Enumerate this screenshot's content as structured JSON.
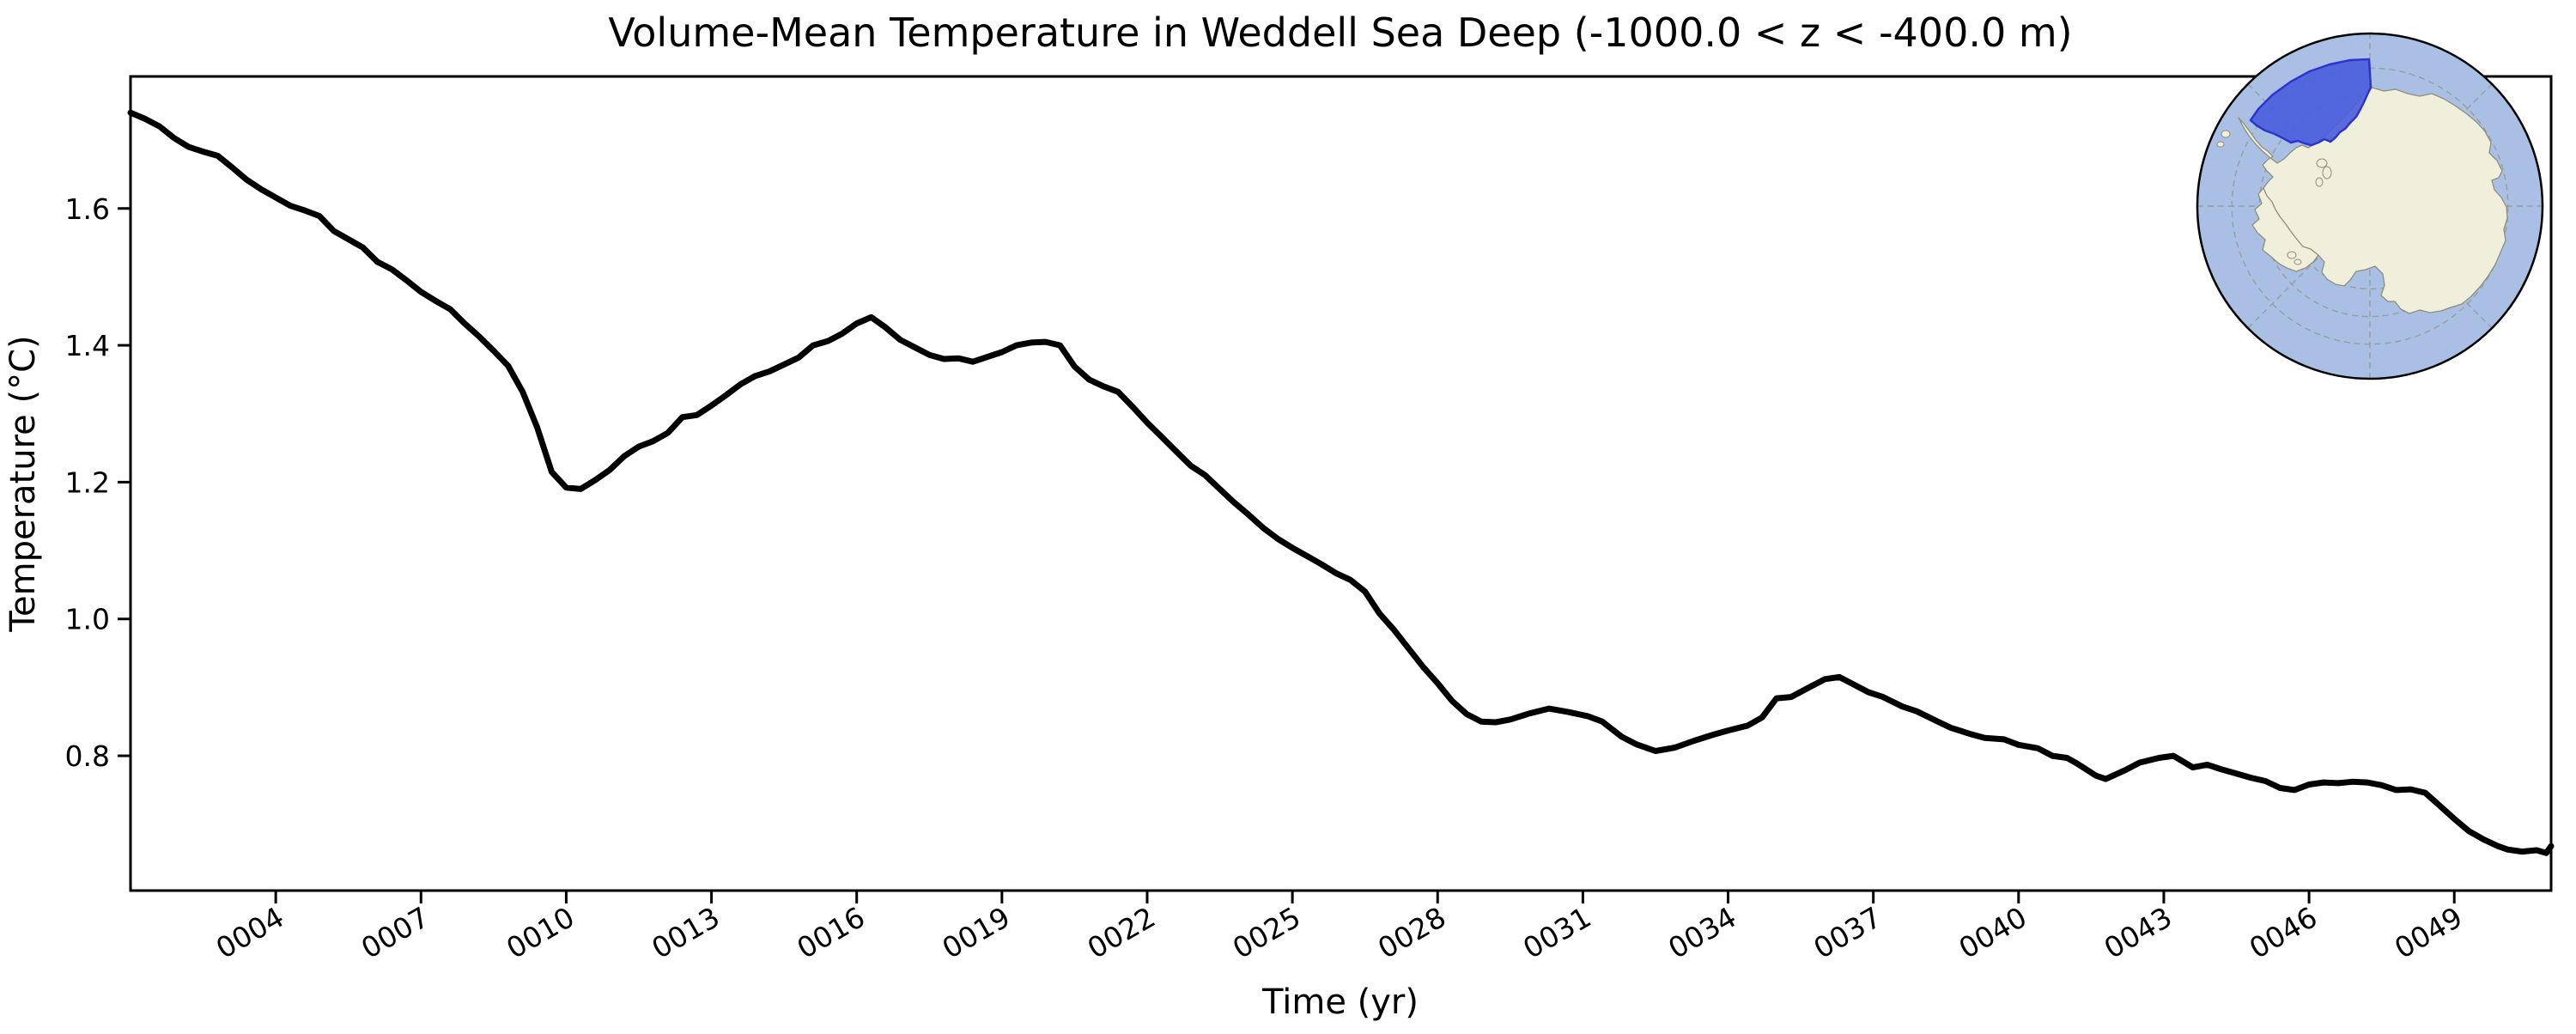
{
  "figure": {
    "title": "Volume-Mean Temperature in Weddell Sea Deep (-1000.0 < z < -400.0 m)",
    "xlabel": "Time (yr)",
    "ylabel": "Temperature (°C)",
    "background_color": "#ffffff",
    "line_color": "#000000"
  },
  "chart_data": {
    "type": "line",
    "title": "Volume-Mean Temperature in Weddell Sea Deep (-1000.0 < z < -400.0 m)",
    "xlabel": "Time (yr)",
    "ylabel": "Temperature (°C)",
    "xlim": [
      1.0,
      51.0
    ],
    "ylim": [
      0.603,
      1.793
    ],
    "grid": false,
    "legend": null,
    "x_ticks": [
      4,
      7,
      10,
      13,
      16,
      19,
      22,
      25,
      28,
      31,
      34,
      37,
      40,
      43,
      46,
      49
    ],
    "x_tick_labels": [
      "0004",
      "0007",
      "0010",
      "0013",
      "0016",
      "0019",
      "0022",
      "0025",
      "0028",
      "0031",
      "0034",
      "0037",
      "0040",
      "0043",
      "0046",
      "0049"
    ],
    "y_ticks": [
      0.8,
      1.0,
      1.2,
      1.4,
      1.6
    ],
    "y_tick_labels": [
      "0.8",
      "1.0",
      "1.2",
      "1.4",
      "1.6"
    ],
    "series": [
      {
        "name": "volume-mean-temperature",
        "color": "#000000",
        "linewidth": 7,
        "x": [
          1.0,
          1.3,
          1.6,
          1.9,
          2.2,
          2.5,
          2.8,
          3.1,
          3.4,
          3.7,
          4.0,
          4.3,
          4.6,
          4.9,
          5.2,
          5.5,
          5.8,
          6.1,
          6.4,
          6.7,
          7.0,
          7.3,
          7.6,
          7.9,
          8.2,
          8.5,
          8.8,
          9.1,
          9.4,
          9.7,
          10.0,
          10.3,
          10.6,
          10.9,
          11.2,
          11.5,
          11.8,
          12.1,
          12.4,
          12.7,
          13.0,
          13.3,
          13.6,
          13.9,
          14.2,
          14.5,
          14.8,
          15.1,
          15.4,
          15.7,
          16.0,
          16.3,
          16.6,
          16.9,
          17.2,
          17.5,
          17.8,
          18.1,
          18.4,
          18.7,
          19.0,
          19.3,
          19.6,
          19.9,
          20.2,
          20.5,
          20.8,
          21.1,
          21.4,
          21.7,
          22.0,
          22.3,
          22.6,
          22.9,
          23.2,
          23.5,
          23.8,
          24.1,
          24.4,
          24.7,
          25.0,
          25.3,
          25.6,
          25.9,
          26.2,
          26.5,
          26.8,
          27.1,
          27.4,
          27.7,
          28.0,
          28.3,
          28.6,
          28.9,
          29.2,
          29.5,
          29.9,
          30.3,
          30.7,
          31.1,
          31.4,
          31.8,
          32.1,
          32.5,
          32.9,
          33.3,
          33.7,
          34.0,
          34.4,
          34.7,
          35.0,
          35.3,
          35.7,
          36.0,
          36.3,
          36.6,
          36.9,
          37.2,
          37.6,
          37.9,
          38.3,
          38.6,
          39.0,
          39.3,
          39.7,
          40.0,
          40.4,
          40.7,
          41.0,
          41.2,
          41.6,
          41.8,
          42.2,
          42.5,
          42.9,
          43.2,
          43.6,
          43.9,
          44.2,
          44.5,
          44.8,
          45.1,
          45.4,
          45.7,
          46.0,
          46.3,
          46.6,
          46.9,
          47.2,
          47.5,
          47.8,
          48.1,
          48.4,
          48.7,
          49.0,
          49.3,
          49.6,
          49.9,
          50.1,
          50.4,
          50.7,
          50.9,
          51.0
        ],
        "y": [
          1.74,
          1.731,
          1.72,
          1.703,
          1.69,
          1.683,
          1.677,
          1.66,
          1.642,
          1.628,
          1.616,
          1.604,
          1.597,
          1.589,
          1.567,
          1.555,
          1.543,
          1.522,
          1.511,
          1.495,
          1.478,
          1.465,
          1.453,
          1.432,
          1.413,
          1.392,
          1.37,
          1.332,
          1.28,
          1.215,
          1.192,
          1.19,
          1.203,
          1.218,
          1.238,
          1.252,
          1.26,
          1.272,
          1.295,
          1.298,
          1.312,
          1.327,
          1.343,
          1.355,
          1.362,
          1.372,
          1.382,
          1.4,
          1.406,
          1.417,
          1.432,
          1.441,
          1.426,
          1.408,
          1.397,
          1.386,
          1.38,
          1.381,
          1.376,
          1.383,
          1.39,
          1.4,
          1.404,
          1.405,
          1.4,
          1.369,
          1.35,
          1.34,
          1.332,
          1.31,
          1.287,
          1.266,
          1.245,
          1.224,
          1.21,
          1.19,
          1.17,
          1.152,
          1.133,
          1.117,
          1.104,
          1.092,
          1.08,
          1.067,
          1.057,
          1.04,
          1.008,
          0.984,
          0.957,
          0.93,
          0.906,
          0.88,
          0.861,
          0.85,
          0.849,
          0.853,
          0.862,
          0.869,
          0.864,
          0.858,
          0.85,
          0.828,
          0.817,
          0.807,
          0.812,
          0.822,
          0.831,
          0.837,
          0.844,
          0.856,
          0.884,
          0.886,
          0.901,
          0.912,
          0.915,
          0.904,
          0.893,
          0.886,
          0.872,
          0.865,
          0.851,
          0.841,
          0.832,
          0.826,
          0.824,
          0.816,
          0.811,
          0.8,
          0.797,
          0.789,
          0.771,
          0.766,
          0.779,
          0.79,
          0.797,
          0.8,
          0.783,
          0.787,
          0.78,
          0.774,
          0.768,
          0.763,
          0.753,
          0.75,
          0.758,
          0.761,
          0.76,
          0.762,
          0.761,
          0.757,
          0.75,
          0.751,
          0.746,
          0.727,
          0.708,
          0.69,
          0.678,
          0.668,
          0.663,
          0.66,
          0.662,
          0.658,
          0.668
        ]
      }
    ],
    "inset_map": {
      "name": "antarctica-polar-inset-map",
      "highlight": "weddell-sea-region",
      "ocean_color": "#a9c0e4",
      "land_color": "#f0efdb",
      "coast_color": "#8e8e7e",
      "region_fill": "#4b5edc",
      "region_edge": "#2d35cc",
      "graticule_color": "#999999",
      "outline_color": "#000000"
    }
  }
}
